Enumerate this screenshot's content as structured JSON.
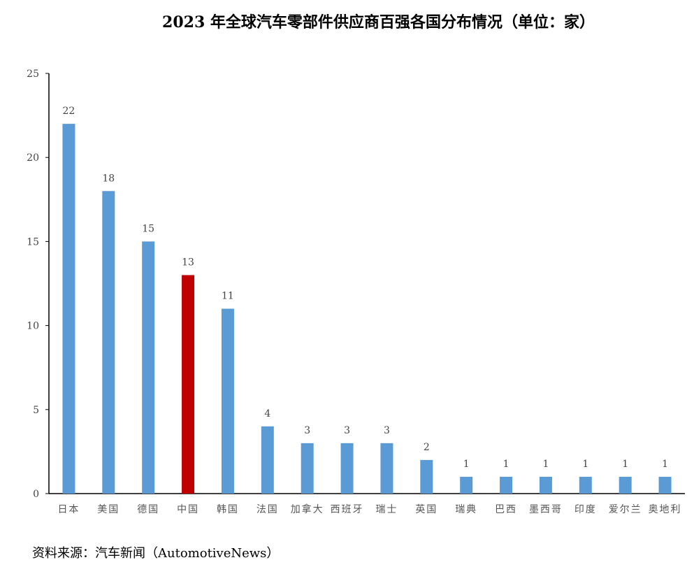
{
  "chart_data": {
    "type": "bar",
    "title": "2023 年全球汽车零部件供应商百强各国分布情况（单位：家）",
    "source": "资料来源：汽车新闻（AutomotiveNews）",
    "categories": [
      "日本",
      "美国",
      "德国",
      "中国",
      "韩国",
      "法国",
      "加拿大",
      "西班牙",
      "瑞士",
      "英国",
      "瑞典",
      "巴西",
      "墨西哥",
      "印度",
      "爱尔兰",
      "奥地利"
    ],
    "values": [
      22,
      18,
      15,
      13,
      11,
      4,
      3,
      3,
      3,
      2,
      1,
      1,
      1,
      1,
      1,
      1
    ],
    "ylim": [
      0,
      25
    ],
    "yticks": [
      "0",
      "5",
      "10",
      "15",
      "20",
      "25"
    ],
    "grid": false,
    "colors": {
      "default": "#5b9bd5",
      "highlight": "#c00000",
      "axis": "#000000"
    },
    "highlight_category": "中国"
  }
}
